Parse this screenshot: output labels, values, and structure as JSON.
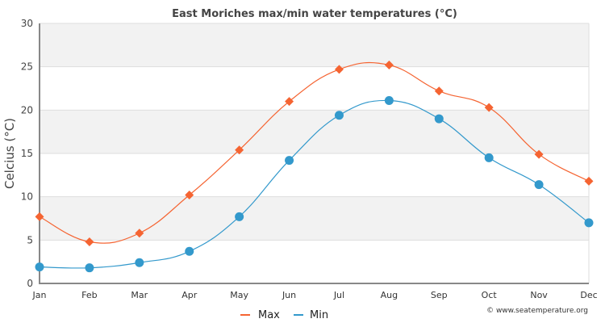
{
  "chart_data": {
    "type": "line",
    "title": "East Moriches max/min water temperatures (°C)",
    "xlabel": "",
    "ylabel": "Celcius (°C)",
    "ylim": [
      0,
      30
    ],
    "yticks": [
      0,
      5,
      10,
      15,
      20,
      25,
      30
    ],
    "categories": [
      "Jan",
      "Feb",
      "Mar",
      "Apr",
      "May",
      "Jun",
      "Jul",
      "Aug",
      "Sep",
      "Oct",
      "Nov",
      "Dec"
    ],
    "series": [
      {
        "name": "Max",
        "color": "#f56432",
        "marker": "diamond",
        "values": [
          7.7,
          4.8,
          5.8,
          10.2,
          15.4,
          21.0,
          24.7,
          25.2,
          22.2,
          20.3,
          14.9,
          11.8
        ]
      },
      {
        "name": "Min",
        "color": "#3399cc",
        "marker": "circle",
        "values": [
          1.9,
          1.8,
          2.4,
          3.7,
          7.7,
          14.2,
          19.4,
          21.1,
          19.0,
          14.5,
          11.4,
          7.0
        ]
      }
    ],
    "grid": true,
    "band_fill": "#f2f2f2",
    "legend": "bottom-center",
    "credit": "© www.seatemperature.org"
  }
}
